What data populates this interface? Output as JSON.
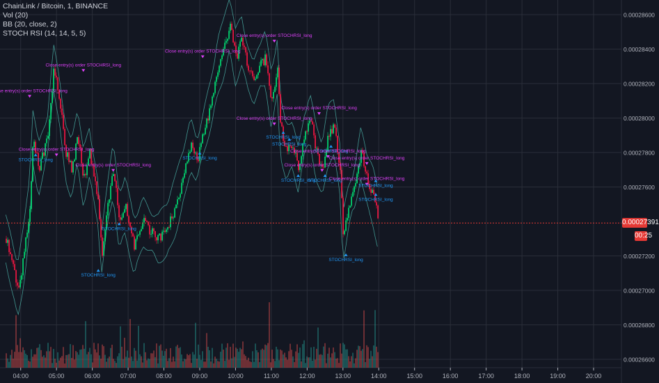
{
  "legend": {
    "title": "ChainLink / Bitcoin, 1, BINANCE",
    "vol": "Vol (20)",
    "bb": "BB (20, close, 2)",
    "stoch": "STOCH RSI (14, 14, 5, 5)"
  },
  "colors": {
    "background": "#131722",
    "grid": "#2a2e39",
    "axis_text": "#b2b5be",
    "bull": "#26a69a",
    "bear": "#ef5350",
    "candle_up": "#00e676",
    "candle_down": "#ff1744",
    "bb_band": "#4db6ac",
    "entry_label": "#2196f3",
    "exit_label": "#e040fb",
    "price_line": "#e53935"
  },
  "price_axis": {
    "ticks": [
      "0.00028600",
      "0.00028400",
      "0.00028200",
      "0.00028000",
      "0.00027800",
      "0.00027600",
      "0.00027200",
      "0.00027000",
      "0.00026800",
      "0.00026600"
    ],
    "current_price": "0.00027391",
    "countdown": "00:25"
  },
  "time_axis": {
    "ticks": [
      "04:00",
      "05:00",
      "06:00",
      "07:00",
      "08:00",
      "09:00",
      "10:00",
      "11:00",
      "12:00",
      "13:00",
      "14:00",
      "15:00",
      "16:00",
      "17:00",
      "18:00",
      "19:00",
      "20:00"
    ]
  },
  "chart_data": {
    "type": "candlestick",
    "symbol": "ChainLink / Bitcoin",
    "interval": "1",
    "exchange": "BINANCE",
    "ylim": [
      0.000266,
      0.000286
    ],
    "last_price": 0.00027391,
    "close_path": [
      {
        "t": "03:35",
        "v": 0.000273
      },
      {
        "t": "03:45",
        "v": 0.0002715
      },
      {
        "t": "03:55",
        "v": 0.00027
      },
      {
        "t": "04:05",
        "v": 0.000272
      },
      {
        "t": "04:15",
        "v": 0.000275
      },
      {
        "t": "04:20",
        "v": 0.000279
      },
      {
        "t": "04:30",
        "v": 0.000277
      },
      {
        "t": "04:45",
        "v": 0.000279
      },
      {
        "t": "04:55",
        "v": 0.000283
      },
      {
        "t": "05:05",
        "v": 0.000281
      },
      {
        "t": "05:15",
        "v": 0.000278
      },
      {
        "t": "05:25",
        "v": 0.000277
      },
      {
        "t": "05:35",
        "v": 0.000279
      },
      {
        "t": "05:45",
        "v": 0.0002765
      },
      {
        "t": "05:55",
        "v": 0.000278
      },
      {
        "t": "06:00",
        "v": 0.000277
      },
      {
        "t": "06:10",
        "v": 0.000275
      },
      {
        "t": "06:15",
        "v": 0.000272
      },
      {
        "t": "06:25",
        "v": 0.000275
      },
      {
        "t": "06:35",
        "v": 0.000277
      },
      {
        "t": "06:45",
        "v": 0.000274
      },
      {
        "t": "06:55",
        "v": 0.000275
      },
      {
        "t": "07:10",
        "v": 0.0002725
      },
      {
        "t": "07:25",
        "v": 0.000274
      },
      {
        "t": "07:35",
        "v": 0.0002735
      },
      {
        "t": "07:50",
        "v": 0.000273
      },
      {
        "t": "08:05",
        "v": 0.0002735
      },
      {
        "t": "08:20",
        "v": 0.000275
      },
      {
        "t": "08:35",
        "v": 0.000277
      },
      {
        "t": "08:45",
        "v": 0.0002785
      },
      {
        "t": "08:55",
        "v": 0.0002775
      },
      {
        "t": "09:05",
        "v": 0.000279
      },
      {
        "t": "09:20",
        "v": 0.000281
      },
      {
        "t": "09:30",
        "v": 0.000283
      },
      {
        "t": "09:40",
        "v": 0.000284
      },
      {
        "t": "09:50",
        "v": 0.0002855
      },
      {
        "t": "10:00",
        "v": 0.0002835
      },
      {
        "t": "10:10",
        "v": 0.0002845
      },
      {
        "t": "10:20",
        "v": 0.000283
      },
      {
        "t": "10:30",
        "v": 0.000282
      },
      {
        "t": "10:40",
        "v": 0.000283
      },
      {
        "t": "10:50",
        "v": 0.0002835
      },
      {
        "t": "11:00",
        "v": 0.000281
      },
      {
        "t": "11:10",
        "v": 0.000283
      },
      {
        "t": "11:15",
        "v": 0.0002795
      },
      {
        "t": "11:25",
        "v": 0.000278
      },
      {
        "t": "11:35",
        "v": 0.0002785
      },
      {
        "t": "11:45",
        "v": 0.000277
      },
      {
        "t": "11:55",
        "v": 0.000279
      },
      {
        "t": "12:05",
        "v": 0.00028
      },
      {
        "t": "12:15",
        "v": 0.000278
      },
      {
        "t": "12:25",
        "v": 0.000277
      },
      {
        "t": "12:35",
        "v": 0.000279
      },
      {
        "t": "12:45",
        "v": 0.0002795
      },
      {
        "t": "12:55",
        "v": 0.000277
      },
      {
        "t": "13:00",
        "v": 0.000273
      },
      {
        "t": "13:10",
        "v": 0.000275
      },
      {
        "t": "13:20",
        "v": 0.000276
      },
      {
        "t": "13:30",
        "v": 0.000278
      },
      {
        "t": "13:40",
        "v": 0.0002765
      },
      {
        "t": "13:50",
        "v": 0.0002755
      },
      {
        "t": "14:00",
        "v": 0.00027391
      }
    ]
  },
  "trade_labels": [
    {
      "text": "Close entry(s) order STOCHRSI_long",
      "kind": "exit",
      "t": "04:15",
      "v": 0.0002815
    },
    {
      "text": "STOCHRSI_long",
      "kind": "entry",
      "t": "04:25",
      "v": 0.0002775
    },
    {
      "text": "Close entry(s) order STOCHRSI_long",
      "kind": "exit",
      "t": "05:00",
      "v": 0.0002781
    },
    {
      "text": "Close entry(s) order STOCHRSI_long",
      "kind": "exit",
      "t": "05:45",
      "v": 0.000283
    },
    {
      "text": "Close entry(s) order STOCHRSI_long",
      "kind": "exit",
      "t": "06:35",
      "v": 0.0002772
    },
    {
      "text": "STOCHRSI_long",
      "kind": "entry",
      "t": "06:45",
      "v": 0.0002735
    },
    {
      "text": "STOCHRSI_long",
      "kind": "entry",
      "t": "06:10",
      "v": 0.0002708
    },
    {
      "text": "Close entry(s) order STOCHRSI_long",
      "kind": "exit",
      "t": "09:05",
      "v": 0.0002838
    },
    {
      "text": "STOCHRSI_long",
      "kind": "entry",
      "t": "09:00",
      "v": 0.0002776
    },
    {
      "text": "Close entry(s) order STOCHRSI_long",
      "kind": "exit",
      "t": "11:05",
      "v": 0.0002847
    },
    {
      "text": "Close entry(s) order STOCHRSI_long",
      "kind": "exit",
      "t": "11:05",
      "v": 0.0002799
    },
    {
      "text": "STOCHRSI_long",
      "kind": "entry",
      "t": "11:20",
      "v": 0.0002788
    },
    {
      "text": "STOCHRSI_long",
      "kind": "entry",
      "t": "11:30",
      "v": 0.0002784
    },
    {
      "text": "STOCHRSI_long",
      "kind": "entry",
      "t": "11:45",
      "v": 0.0002763
    },
    {
      "text": "Close entry(s) order STOCHRSI_long",
      "kind": "exit",
      "t": "12:20",
      "v": 0.0002805
    },
    {
      "text": "Close entry(s) order STOCHRSI_long",
      "kind": "exit",
      "t": "12:25",
      "v": 0.0002772
    },
    {
      "text": "STOCHRSI_long",
      "kind": "entry",
      "t": "12:40",
      "v": 0.000278
    },
    {
      "text": "Close entry(s) order STOCHRSI_long",
      "kind": "exit",
      "t": "12:35",
      "v": 0.000278
    },
    {
      "text": "STOCHRSI_long",
      "kind": "entry",
      "t": "12:30",
      "v": 0.0002763
    },
    {
      "text": "Close entry(s) order STOCHRSI_long",
      "kind": "exit",
      "t": "13:40",
      "v": 0.0002776
    },
    {
      "text": "Close entry(s) order STOCHRSI_long",
      "kind": "exit",
      "t": "13:40",
      "v": 0.0002764
    },
    {
      "text": "STOCHRSI_long",
      "kind": "entry",
      "t": "13:55",
      "v": 0.000276
    },
    {
      "text": "STOCHRSI_long",
      "kind": "entry",
      "t": "13:55",
      "v": 0.0002752
    },
    {
      "text": "STOCHRSI_long",
      "kind": "entry",
      "t": "13:05",
      "v": 0.0002717
    }
  ]
}
